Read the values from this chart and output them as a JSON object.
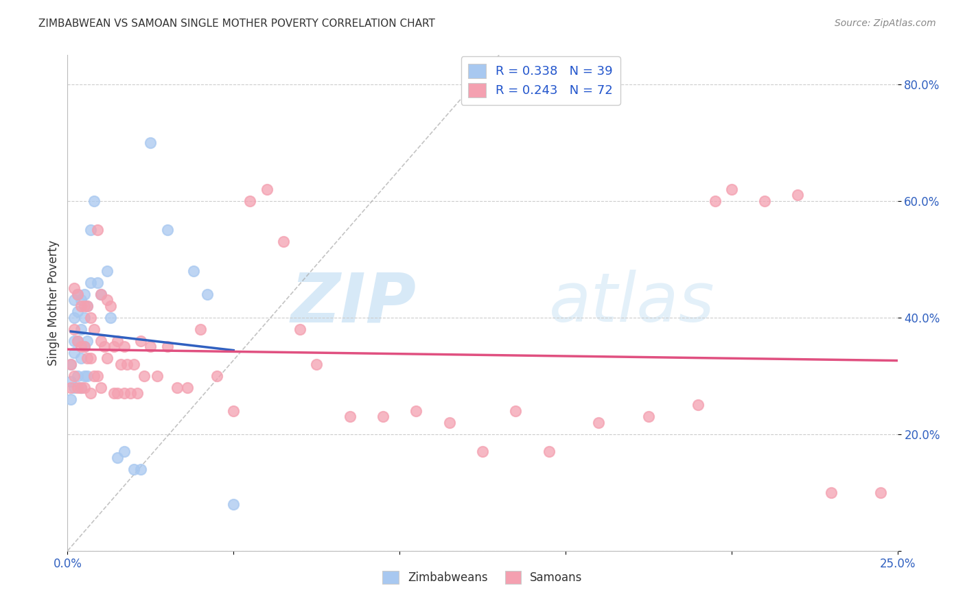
{
  "title": "ZIMBABWEAN VS SAMOAN SINGLE MOTHER POVERTY CORRELATION CHART",
  "source": "Source: ZipAtlas.com",
  "ylabel": "Single Mother Poverty",
  "xlim": [
    0.0,
    0.25
  ],
  "ylim": [
    0.0,
    0.85
  ],
  "x_ticks": [
    0.0,
    0.05,
    0.1,
    0.15,
    0.2,
    0.25
  ],
  "x_tick_labels": [
    "0.0%",
    "",
    "",
    "",
    "",
    "25.0%"
  ],
  "y_ticks": [
    0.0,
    0.2,
    0.4,
    0.6,
    0.8
  ],
  "y_tick_labels": [
    "",
    "20.0%",
    "40.0%",
    "60.0%",
    "80.0%"
  ],
  "legend_label1": "R = 0.338   N = 39",
  "legend_label2": "R = 0.243   N = 72",
  "legend_label_bottom1": "Zimbabweans",
  "legend_label_bottom2": "Samoans",
  "zim_color": "#a8c8f0",
  "sam_color": "#f4a0b0",
  "zim_line_color": "#3060c0",
  "sam_line_color": "#e05080",
  "background_color": "#ffffff",
  "watermark_zip": "ZIP",
  "watermark_atlas": "atlas",
  "zim_scatter_x": [
    0.001,
    0.001,
    0.001,
    0.002,
    0.002,
    0.002,
    0.002,
    0.002,
    0.003,
    0.003,
    0.003,
    0.003,
    0.004,
    0.004,
    0.004,
    0.004,
    0.005,
    0.005,
    0.005,
    0.005,
    0.006,
    0.006,
    0.006,
    0.007,
    0.007,
    0.008,
    0.009,
    0.01,
    0.012,
    0.013,
    0.015,
    0.017,
    0.02,
    0.022,
    0.025,
    0.03,
    0.038,
    0.042,
    0.05
  ],
  "zim_scatter_y": [
    0.32,
    0.29,
    0.26,
    0.43,
    0.4,
    0.36,
    0.34,
    0.28,
    0.44,
    0.41,
    0.36,
    0.3,
    0.43,
    0.38,
    0.33,
    0.28,
    0.44,
    0.4,
    0.35,
    0.3,
    0.42,
    0.36,
    0.3,
    0.55,
    0.46,
    0.6,
    0.46,
    0.44,
    0.48,
    0.4,
    0.16,
    0.17,
    0.14,
    0.14,
    0.7,
    0.55,
    0.48,
    0.44,
    0.08
  ],
  "sam_scatter_x": [
    0.001,
    0.001,
    0.002,
    0.002,
    0.002,
    0.003,
    0.003,
    0.003,
    0.004,
    0.004,
    0.004,
    0.005,
    0.005,
    0.005,
    0.006,
    0.006,
    0.007,
    0.007,
    0.007,
    0.008,
    0.008,
    0.009,
    0.009,
    0.01,
    0.01,
    0.01,
    0.011,
    0.012,
    0.012,
    0.013,
    0.014,
    0.014,
    0.015,
    0.015,
    0.016,
    0.017,
    0.017,
    0.018,
    0.019,
    0.02,
    0.021,
    0.022,
    0.023,
    0.025,
    0.027,
    0.03,
    0.033,
    0.036,
    0.04,
    0.045,
    0.05,
    0.055,
    0.06,
    0.065,
    0.07,
    0.075,
    0.085,
    0.095,
    0.105,
    0.115,
    0.125,
    0.135,
    0.145,
    0.16,
    0.175,
    0.19,
    0.195,
    0.2,
    0.21,
    0.22,
    0.23,
    0.245
  ],
  "sam_scatter_y": [
    0.32,
    0.28,
    0.45,
    0.38,
    0.3,
    0.44,
    0.36,
    0.28,
    0.42,
    0.35,
    0.28,
    0.42,
    0.35,
    0.28,
    0.42,
    0.33,
    0.4,
    0.33,
    0.27,
    0.38,
    0.3,
    0.55,
    0.3,
    0.44,
    0.36,
    0.28,
    0.35,
    0.43,
    0.33,
    0.42,
    0.35,
    0.27,
    0.36,
    0.27,
    0.32,
    0.35,
    0.27,
    0.32,
    0.27,
    0.32,
    0.27,
    0.36,
    0.3,
    0.35,
    0.3,
    0.35,
    0.28,
    0.28,
    0.38,
    0.3,
    0.24,
    0.6,
    0.62,
    0.53,
    0.38,
    0.32,
    0.23,
    0.23,
    0.24,
    0.22,
    0.17,
    0.24,
    0.17,
    0.22,
    0.23,
    0.25,
    0.6,
    0.62,
    0.6,
    0.61,
    0.1,
    0.1
  ]
}
